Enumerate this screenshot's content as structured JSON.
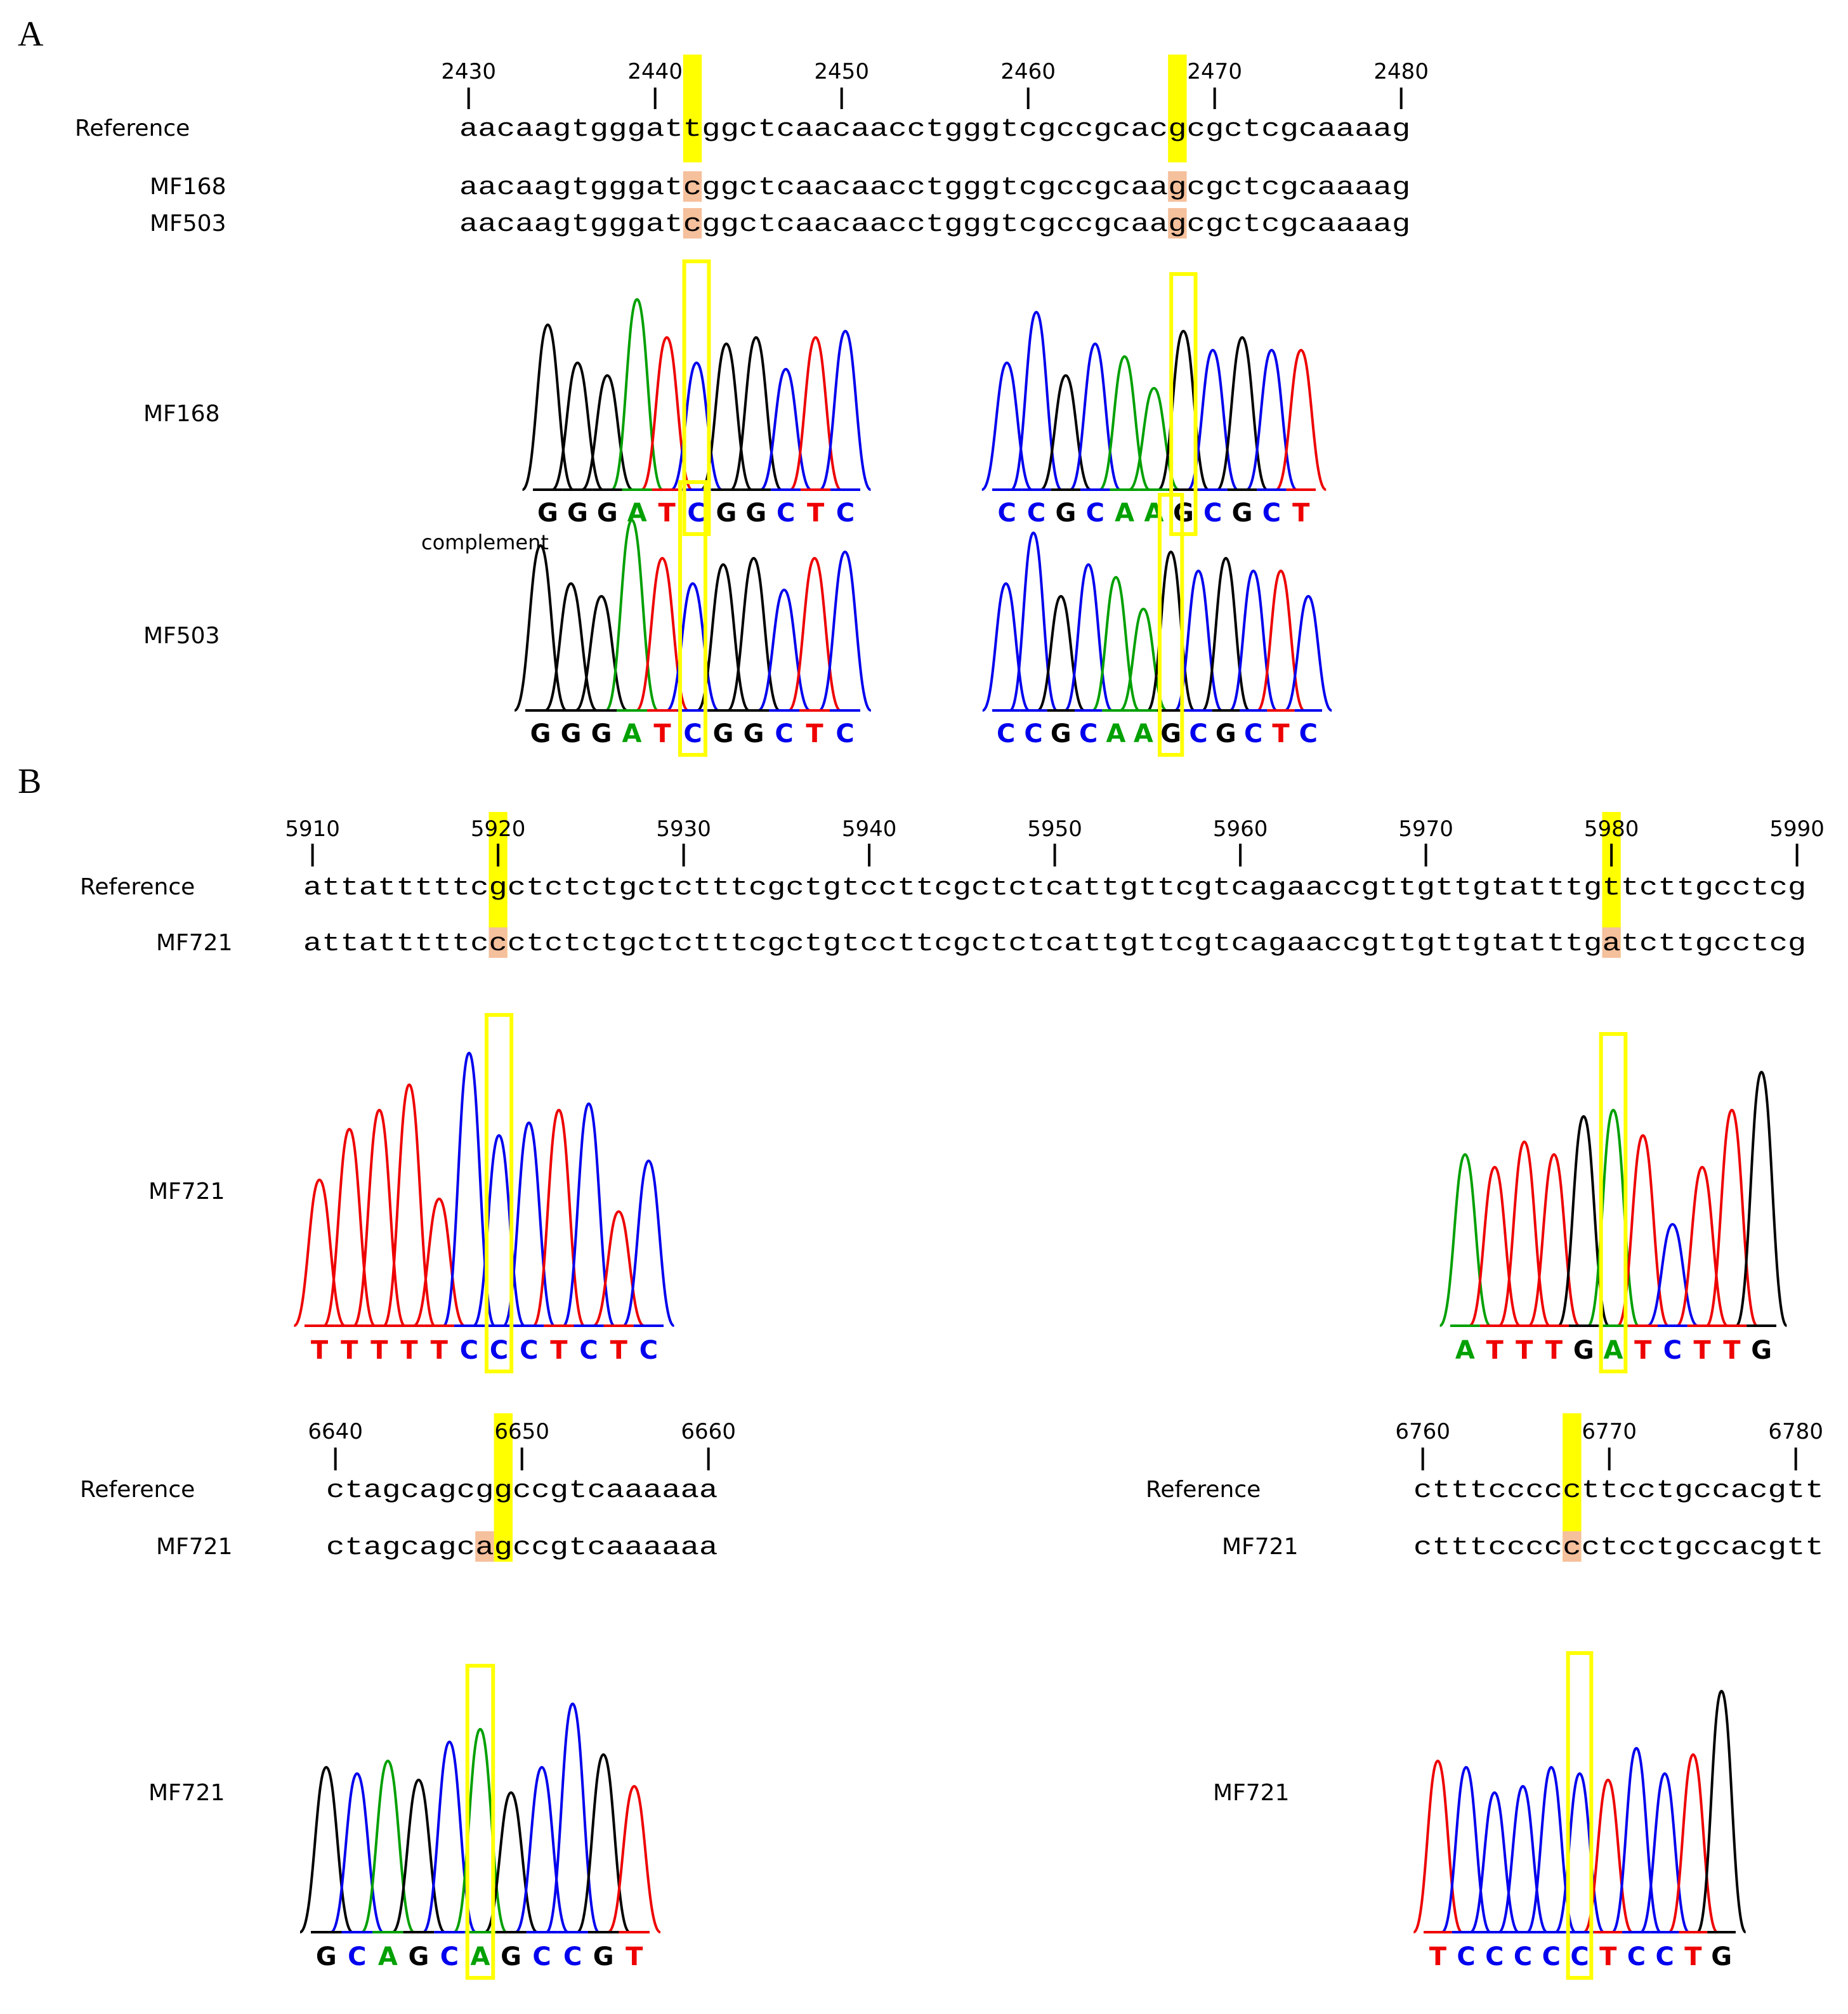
{
  "colors": {
    "A": "#00a000",
    "C": "#0000ee",
    "G": "#000000",
    "T": "#ee0000",
    "highlight": "#ffff00",
    "variant": "#f5c09c"
  },
  "panels": [
    {
      "letter": "A",
      "ruler": {
        "start": 2430,
        "ticks": [
          2430,
          2440,
          2450,
          2460,
          2470,
          2480
        ],
        "highlight": [
          2442,
          2468
        ]
      },
      "align": [
        {
          "label": "Reference",
          "seq": "aacaagtgggattggctcaacaacctgggtcgccgcacgcgctcgcaaaag",
          "hi": [
            12,
            38
          ],
          "kind": "ref"
        },
        {
          "label": "MF168",
          "seq": "aacaagtgggatcggctcaacaacctgggtcgccgcaagcgctcgcaaaag",
          "hi": [
            12,
            38
          ],
          "kind": "var"
        },
        {
          "label": "MF503",
          "seq": "aacaagtgggatcggctcaacaacctgggtcgccgcaagcgctcgcaaaag",
          "hi": [
            12,
            38
          ],
          "kind": "var"
        }
      ],
      "traces": [
        {
          "label": "MF168",
          "bases": "GGGATCGGCTC",
          "box": 5,
          "note": ""
        },
        {
          "label": "",
          "bases": "CCGCAAGCGCT",
          "box": 6,
          "note": ""
        },
        {
          "label": "MF503",
          "bases": "GGGATCGGCTC",
          "box": 5,
          "note": "complement"
        },
        {
          "label": "",
          "bases": "CCGCAAGCGCTC",
          "box": 6,
          "note": ""
        }
      ]
    },
    {
      "letter": "B",
      "ruler": {
        "start": 5910,
        "ticks": [
          5910,
          5920,
          5930,
          5940,
          5950,
          5960,
          5970,
          5980,
          5990
        ],
        "highlight": [
          5920,
          5980
        ]
      },
      "align": [
        {
          "label": "Reference",
          "seq": "attatttttcgctctctgctctttcgctgtccttcgctctcattgttcgtcagaaccgttgttgtatttgttcttgcctcg",
          "hi": [
            10,
            70
          ],
          "kind": "ref"
        },
        {
          "label": "MF721",
          "seq": "attatttttccctctctgctctttcgctgtccttcgctctcattgttcgtcagaaccgttgttgtatttgatcttgcctcg",
          "hi": [
            10,
            70
          ],
          "kind": "var"
        }
      ],
      "traces": [
        {
          "label": "MF721",
          "bases": "TTTTTCCCTCTC",
          "box": 6,
          "note": ""
        },
        {
          "label": "",
          "bases": "ATTTGATCTTG",
          "box": 5,
          "note": ""
        }
      ],
      "sub": [
        {
          "ruler": {
            "start": 6640,
            "ticks": [
              6640,
              6650,
              6660
            ],
            "highlight": [
              6649
            ]
          },
          "align": [
            {
              "label": "Reference",
              "seq": "ctagcagcggccgtcaaaaaa",
              "hi": [
                8
              ],
              "kind": "ref"
            },
            {
              "label": "MF721",
              "seq": "ctagcagcagccgtcaaaaaa",
              "hi": [
                8
              ],
              "kind": "var"
            }
          ],
          "trace": {
            "label": "MF721",
            "bases": "GCAGCAGCCGT",
            "box": 5
          }
        },
        {
          "ruler": {
            "start": 6760,
            "ticks": [
              6760,
              6770,
              6780
            ],
            "highlight": [
              6768
            ]
          },
          "align": [
            {
              "label": "Reference",
              "seq": "ctttcccccttcctgccacgtt",
              "hi": [
                8
              ],
              "kind": "ref"
            },
            {
              "label": "MF721",
              "seq": "ctttcccccctcctgccacgtt",
              "hi": [
                8
              ],
              "kind": "var"
            }
          ],
          "trace": {
            "label": "MF721",
            "bases": "TCCCCCTCCTG",
            "box": 5
          }
        }
      ]
    }
  ]
}
